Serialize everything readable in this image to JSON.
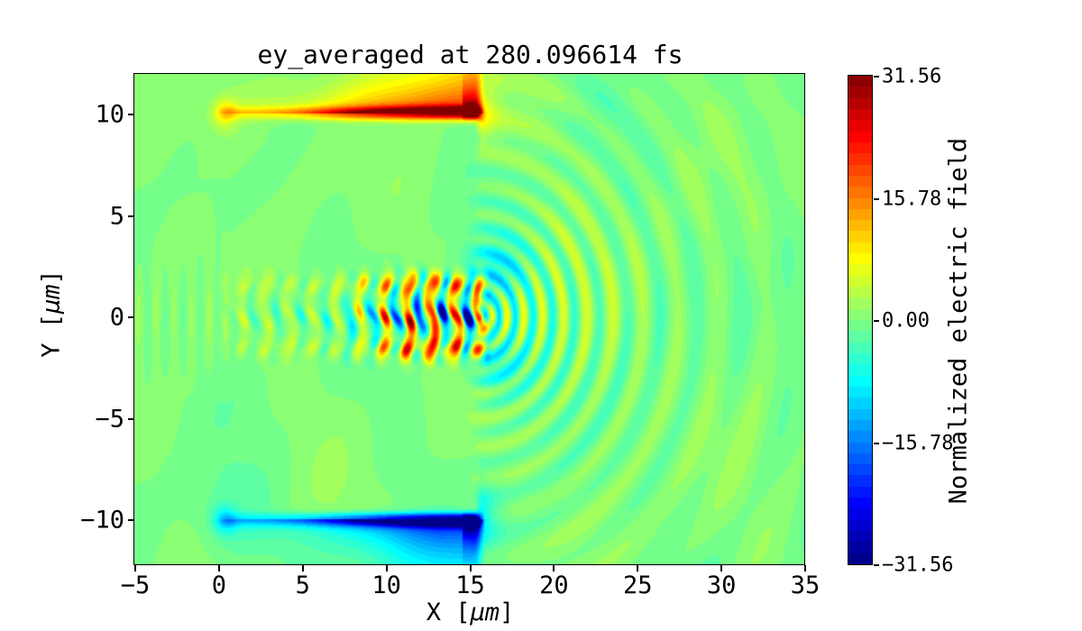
{
  "chart_data": {
    "type": "filled-contour-heatmap",
    "title": "ey_averaged at 280.096614 fs",
    "xlabel": {
      "prefix": "X [",
      "unit": "μm",
      "suffix": "]"
    },
    "ylabel": {
      "prefix": "Y [",
      "unit": "μm",
      "suffix": "]"
    },
    "xlim": [
      -5,
      35
    ],
    "ylim": [
      -12.2,
      11.95
    ],
    "grid": false,
    "x_ticks": [
      {
        "value": -5,
        "label": "−5"
      },
      {
        "value": 0,
        "label": "0"
      },
      {
        "value": 5,
        "label": "5"
      },
      {
        "value": 10,
        "label": "10"
      },
      {
        "value": 15,
        "label": "15"
      },
      {
        "value": 20,
        "label": "20"
      },
      {
        "value": 25,
        "label": "25"
      },
      {
        "value": 30,
        "label": "30"
      },
      {
        "value": 35,
        "label": "35"
      }
    ],
    "y_ticks": [
      {
        "value": 10,
        "label": "10"
      },
      {
        "value": 5,
        "label": "5"
      },
      {
        "value": 0,
        "label": "0"
      },
      {
        "value": -5,
        "label": "−5"
      },
      {
        "value": -10,
        "label": "−10"
      }
    ],
    "colorbar": {
      "label": "Normalized electric field",
      "colormap": "jet",
      "vmin": -31.56,
      "vmax": 31.56,
      "levels": 44,
      "ticks": [
        {
          "value": 31.56,
          "label": "31.56"
        },
        {
          "value": 15.78,
          "label": "15.78"
        },
        {
          "value": 0.0,
          "label": "0.00"
        },
        {
          "value": -15.78,
          "label": "−15.78"
        },
        {
          "value": -31.56,
          "label": "−31.56"
        }
      ]
    },
    "field_model": {
      "background_mottle_amp": 1.15,
      "walls": {
        "y": 10,
        "x_start": 0,
        "x_end": 15.2,
        "ramp_power": 1.2,
        "line_amp_base": 6,
        "line_amp_peak": 32,
        "line_sigma": 0.22,
        "plume_amp_base": 4,
        "plume_amp_peak": 24,
        "plume_len_base": 0.55,
        "plume_len_slope": 0.11,
        "tip_x": 15.2,
        "tip_halo_amp": 15,
        "tip_halo_radius": 1.15,
        "left_dot_x": 0.35,
        "left_dot_amp": 7,
        "left_dot_sigma": 0.5,
        "left_halo_amp": 2.2,
        "left_halo_sigma": 1.8
      },
      "pulse": {
        "x_start": -0.5,
        "x_ramp_end": 2.5,
        "x_peak_start": 4,
        "x_peak_end": 12.5,
        "x_front": 15.4,
        "x_front_end": 16.6,
        "amp_base": 6,
        "amp_peak": 34,
        "wavelength": 1.42,
        "row_offset": 1.55,
        "row_sigma": 0.45,
        "row_weight": 0.55,
        "core_sigma": 0.55,
        "speckle_floor": 0.8,
        "speckle_amp": 0.5,
        "side_bias": 0.3
      },
      "radiation": {
        "center_x": 15.6,
        "center_y": 0,
        "amp": 10,
        "decay": 6.5,
        "faint_amp": 1.8,
        "faint_decay": 14,
        "wavelength_base": 0.8,
        "wavelength_growth": 0.045,
        "phase_offset": 2.2,
        "angular_width": 1.1,
        "angular_floor": 0.3,
        "side_lobe_amp": -7,
        "side_lobe_x": 16.6,
        "side_lobe_y": 2.3,
        "side_lobe_sx": 3.2,
        "side_lobe_sy": 2.0
      },
      "entrance_waves": {
        "amp": 1.6,
        "wavelength": 1.05,
        "y_sigma": 1.6
      }
    }
  }
}
